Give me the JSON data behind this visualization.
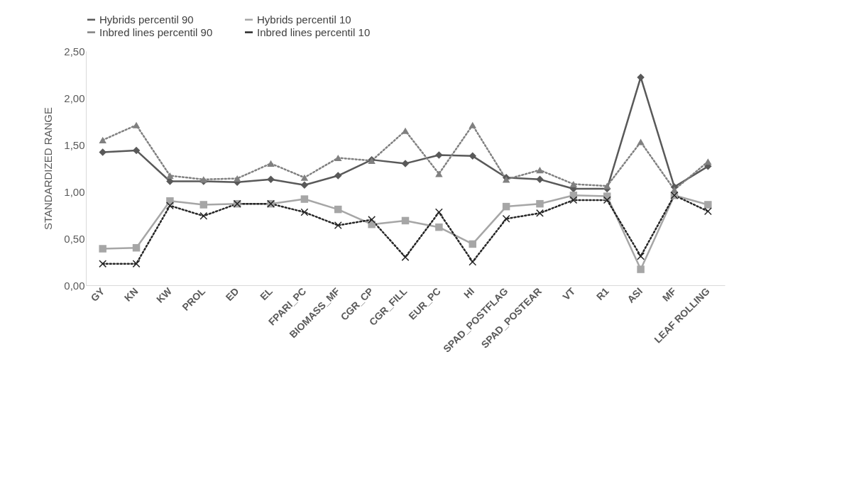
{
  "chart_data": {
    "type": "line",
    "ylabel": "STANDARDIZED    RANGE",
    "categories": [
      "GY",
      "KN",
      "KW",
      "PROL",
      "ED",
      "EL",
      "FPARI_PC",
      "BIOMASS_MF",
      "CGR_CP",
      "CGR_FILL",
      "EUR_PC",
      "HI",
      "SPAD_POSTFLAG",
      "SPAD_POSTEAR",
      "VT",
      "R1",
      "ASI",
      "MF",
      "LEAF ROLLING"
    ],
    "series": [
      {
        "name": "Hybrids percentil 90",
        "color": "#595959",
        "marker": "diamond",
        "line_style": "solid",
        "values": [
          1.42,
          1.44,
          1.11,
          1.11,
          1.1,
          1.13,
          1.07,
          1.17,
          1.34,
          1.3,
          1.39,
          1.38,
          1.15,
          1.13,
          1.03,
          1.03,
          2.22,
          1.05,
          1.27
        ]
      },
      {
        "name": "Hybrids percentil 10",
        "color": "#a6a6a6",
        "marker": "square",
        "line_style": "solid",
        "values": [
          0.39,
          0.4,
          0.9,
          0.86,
          0.87,
          0.87,
          0.92,
          0.81,
          0.65,
          0.69,
          0.62,
          0.44,
          0.84,
          0.87,
          0.96,
          0.95,
          0.17,
          0.96,
          0.86
        ]
      },
      {
        "name": "Inbred lines percentil 90",
        "color": "#808080",
        "marker": "triangle",
        "line_style": "dotted",
        "values": [
          1.55,
          1.71,
          1.17,
          1.13,
          1.14,
          1.3,
          1.15,
          1.36,
          1.33,
          1.65,
          1.19,
          1.71,
          1.13,
          1.23,
          1.08,
          1.06,
          1.53,
          1.02,
          1.32
        ]
      },
      {
        "name": "Inbred lines percentil 10",
        "color": "#262626",
        "marker": "cross",
        "line_style": "dotted",
        "values": [
          0.23,
          0.23,
          0.85,
          0.74,
          0.87,
          0.87,
          0.78,
          0.64,
          0.7,
          0.3,
          0.78,
          0.25,
          0.71,
          0.77,
          0.91,
          0.91,
          0.31,
          0.96,
          0.79
        ]
      }
    ],
    "ylim": [
      0,
      2.5
    ],
    "yticks": [
      {
        "value": 0,
        "label": "0,00"
      },
      {
        "value": 0.5,
        "label": "0,50"
      },
      {
        "value": 1,
        "label": "1,00"
      },
      {
        "value": 1.5,
        "label": "1,50"
      },
      {
        "value": 2,
        "label": "2,00"
      },
      {
        "value": 2.5,
        "label": "2,50"
      }
    ],
    "grid": false,
    "legend": "top"
  }
}
